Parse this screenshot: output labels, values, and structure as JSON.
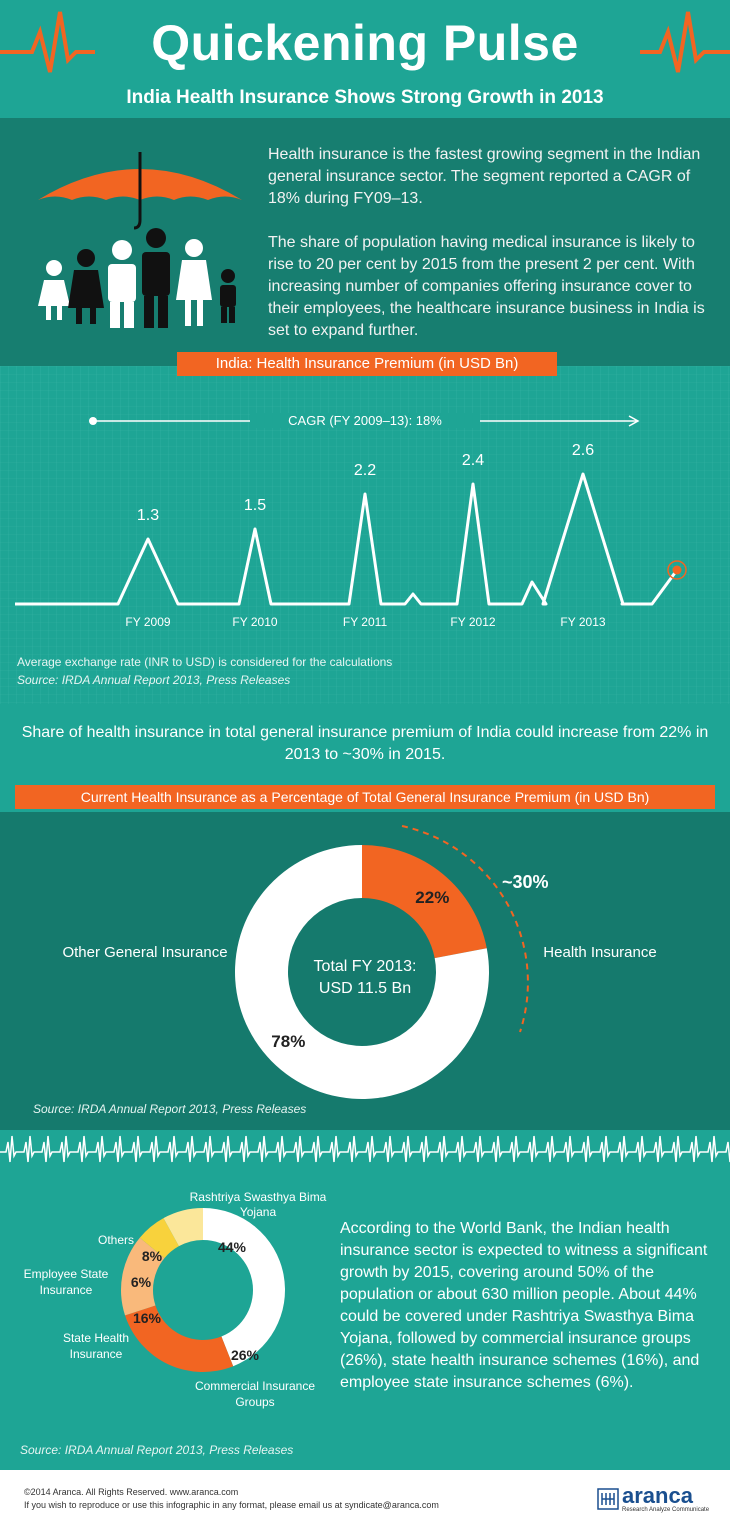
{
  "header": {
    "title": "Quickening Pulse",
    "subtitle": "India Health Insurance Shows Strong Growth in 2013"
  },
  "intro": {
    "p1": "Health insurance is the fastest growing segment in the Indian general insurance sector. The segment reported a CAGR of 18% during FY09–13.",
    "p2": "The share of population having medical insurance is likely to rise to 20 per cent by 2015 from the present 2 per cent. With increasing number of companies offering insurance cover to their employees, the healthcare insurance business in India is set to expand further."
  },
  "premium": {
    "banner": "India: Health Insurance Premium (in USD Bn)",
    "cagr": "CAGR (FY 2009–13): 18%",
    "note": "Average exchange rate (INR to USD) is considered for the calculations",
    "source": "Source: IRDA Annual Report 2013, Press Releases"
  },
  "share": {
    "text": "Share of health insurance in total general insurance premium of India could increase from 22% in 2013 to ~30% in 2015.",
    "banner": "Current Health Insurance as a Percentage of Total General Insurance Premium (in USD Bn)",
    "other_label": "Other General Insurance",
    "health_label": "Health Insurance",
    "center": "Total FY 2013: USD 11.5 Bn",
    "projection": "~30%",
    "source": "Source: IRDA Annual Report 2013, Press Releases"
  },
  "coverage": {
    "para": "According to the World Bank, the Indian health insurance sector is expected to witness a significant growth by 2015, covering around 50% of the population or about 630 million people. About 44% could be covered under Rashtriya Swasthya Bima Yojana, followed by commercial insurance groups (26%), state health insurance schemes (16%), and employee state insurance schemes (6%).",
    "source": "Source: IRDA Annual Report 2013, Press Releases"
  },
  "footer": {
    "copyright": "©2014 Aranca. All Rights Reserved. www.aranca.com",
    "reproduce": "If you wish to reproduce or use this infographic in any format, please email us at syndicate@aranca.com",
    "brand": "aranca",
    "tagline": "Research Analyze Communicate"
  },
  "colors": {
    "accent": "#f26522",
    "teal": "#1ea595",
    "dark_teal": "#157a6d"
  },
  "chart_data": [
    {
      "type": "line",
      "categories": [
        "FY 2009",
        "FY 2010",
        "FY 2011",
        "FY 2012",
        "FY 2013"
      ],
      "values": [
        1.3,
        1.5,
        2.2,
        2.4,
        2.6
      ],
      "value_labels": [
        "1.3",
        "1.5",
        "2.2",
        "2.4",
        "2.6"
      ]
    },
    {
      "type": "pie",
      "labels": [
        "Health Insurance",
        "Other General Insurance"
      ],
      "values": [
        22,
        78
      ],
      "value_labels": [
        "22%",
        "78%"
      ],
      "colors": [
        "#f26522",
        "#ffffff"
      ]
    },
    {
      "type": "pie",
      "labels": [
        "Rashtriya Swasthya Bima Yojana",
        "Commercial Insurance Groups",
        "State Health Insurance",
        "Employee State Insurance",
        "Others"
      ],
      "values": [
        44,
        26,
        16,
        6,
        8
      ],
      "value_labels": [
        "44%",
        "26%",
        "16%",
        "6%",
        "8%"
      ],
      "colors": [
        "#ffffff",
        "#f26522",
        "#f9b97b",
        "#f8d23c",
        "#fbe79a"
      ]
    }
  ]
}
